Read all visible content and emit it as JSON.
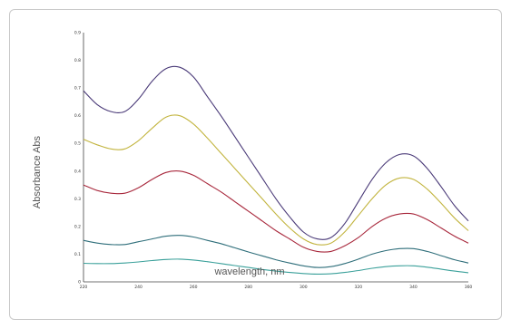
{
  "chart_data": {
    "type": "line",
    "title": "",
    "xlabel": "wavelength, nm",
    "ylabel": "Absorbance Abs",
    "xlim": [
      220,
      360
    ],
    "ylim": [
      0,
      0.9
    ],
    "x_ticks": [
      {
        "value": 220,
        "label": "220"
      },
      {
        "value": 240,
        "label": "240"
      },
      {
        "value": 260,
        "label": "260"
      },
      {
        "value": 280,
        "label": "280"
      },
      {
        "value": 300,
        "label": "300"
      },
      {
        "value": 320,
        "label": "320"
      },
      {
        "value": 340,
        "label": "340"
      },
      {
        "value": 360,
        "label": "360"
      }
    ],
    "y_ticks": [
      {
        "value": 0,
        "label": "0"
      },
      {
        "value": 0.1,
        "label": "0.1"
      },
      {
        "value": 0.2,
        "label": "0.2"
      },
      {
        "value": 0.3,
        "label": "0.3"
      },
      {
        "value": 0.4,
        "label": "0.4"
      },
      {
        "value": 0.5,
        "label": "0.5"
      },
      {
        "value": 0.6,
        "label": "0.6"
      },
      {
        "value": 0.7,
        "label": "0.7"
      },
      {
        "value": 0.8,
        "label": "0.8"
      },
      {
        "value": 0.9,
        "label": "0.9"
      }
    ],
    "grid": false,
    "legend": "none",
    "x": [
      220,
      225,
      230,
      235,
      240,
      245,
      250,
      255,
      260,
      265,
      270,
      275,
      280,
      285,
      290,
      295,
      300,
      305,
      310,
      315,
      320,
      325,
      330,
      335,
      340,
      345,
      350,
      355,
      360
    ],
    "series": [
      {
        "color": "#4a3a78",
        "values": [
          0.69,
          0.64,
          0.615,
          0.615,
          0.66,
          0.725,
          0.77,
          0.775,
          0.74,
          0.67,
          0.6,
          0.525,
          0.45,
          0.375,
          0.3,
          0.235,
          0.18,
          0.155,
          0.16,
          0.21,
          0.29,
          0.37,
          0.43,
          0.46,
          0.455,
          0.41,
          0.345,
          0.275,
          0.22
        ]
      },
      {
        "color": "#c2b43e",
        "values": [
          0.515,
          0.495,
          0.48,
          0.48,
          0.51,
          0.555,
          0.595,
          0.6,
          0.57,
          0.52,
          0.465,
          0.41,
          0.355,
          0.3,
          0.245,
          0.195,
          0.155,
          0.135,
          0.14,
          0.18,
          0.24,
          0.3,
          0.35,
          0.375,
          0.37,
          0.335,
          0.285,
          0.23,
          0.185
        ]
      },
      {
        "color": "#a8283c",
        "values": [
          0.35,
          0.33,
          0.32,
          0.32,
          0.34,
          0.37,
          0.395,
          0.4,
          0.385,
          0.355,
          0.325,
          0.29,
          0.255,
          0.22,
          0.185,
          0.155,
          0.125,
          0.11,
          0.11,
          0.13,
          0.16,
          0.2,
          0.23,
          0.245,
          0.245,
          0.225,
          0.195,
          0.165,
          0.14
        ]
      },
      {
        "color": "#2e6e7a",
        "values": [
          0.15,
          0.14,
          0.135,
          0.135,
          0.145,
          0.155,
          0.165,
          0.168,
          0.162,
          0.15,
          0.138,
          0.123,
          0.108,
          0.094,
          0.08,
          0.068,
          0.058,
          0.052,
          0.055,
          0.066,
          0.082,
          0.1,
          0.113,
          0.12,
          0.12,
          0.11,
          0.095,
          0.08,
          0.068
        ]
      },
      {
        "color": "#3aa09a",
        "values": [
          0.067,
          0.066,
          0.066,
          0.068,
          0.072,
          0.077,
          0.081,
          0.082,
          0.079,
          0.073,
          0.066,
          0.059,
          0.052,
          0.045,
          0.039,
          0.034,
          0.03,
          0.028,
          0.029,
          0.034,
          0.041,
          0.049,
          0.055,
          0.058,
          0.058,
          0.053,
          0.046,
          0.039,
          0.033
        ]
      }
    ]
  }
}
